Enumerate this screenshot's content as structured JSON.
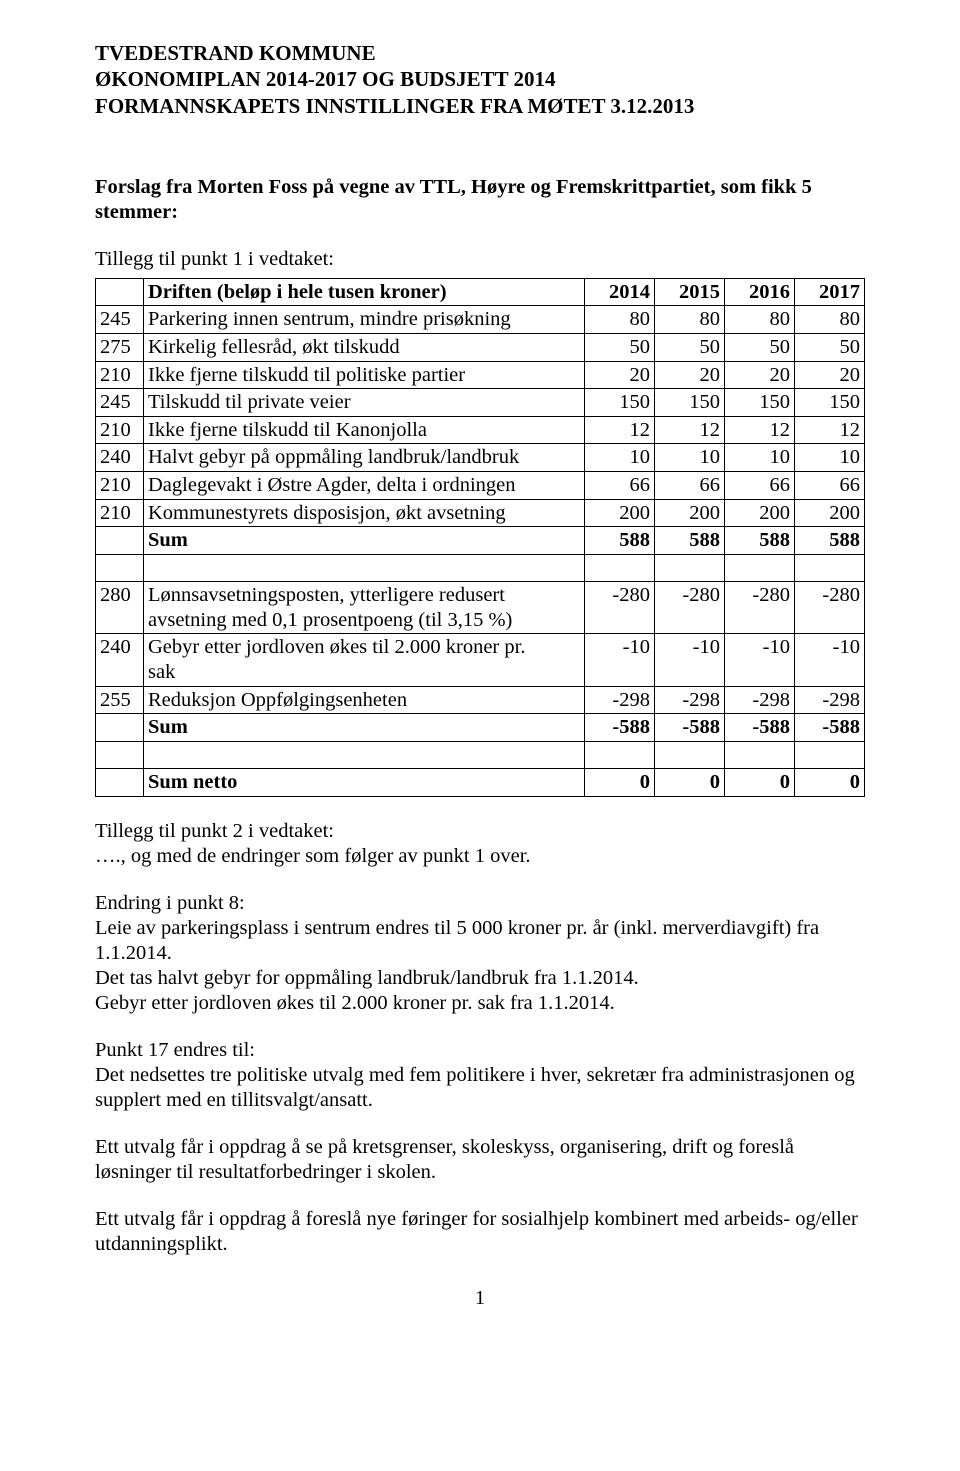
{
  "header": {
    "line1": "TVEDESTRAND KOMMUNE",
    "line2": "ØKONOMIPLAN 2014-2017 OG BUDSJETT 2014",
    "line3": "FORMANNSKAPETS INNSTILLINGER FRA MØTET 3.12.2013"
  },
  "intro": {
    "p1a": "Forslag fra Morten Foss på vegne av TTL, Høyre og Fremskrittpartiet, som fikk 5",
    "p1b": "stemmer:",
    "p2": "Tillegg til punkt 1 i vedtaket:"
  },
  "table": {
    "head_desc": "Driften (beløp i hele tusen kroner)",
    "years": [
      "2014",
      "2015",
      "2016",
      "2017"
    ],
    "section1": [
      {
        "code": "245",
        "desc": "Parkering innen sentrum, mindre prisøkning",
        "v": [
          "80",
          "80",
          "80",
          "80"
        ]
      },
      {
        "code": "275",
        "desc": "Kirkelig fellesråd, økt tilskudd",
        "v": [
          "50",
          "50",
          "50",
          "50"
        ]
      },
      {
        "code": "210",
        "desc": "Ikke fjerne tilskudd til politiske partier",
        "v": [
          "20",
          "20",
          "20",
          "20"
        ]
      },
      {
        "code": "245",
        "desc": "Tilskudd til private veier",
        "v": [
          "150",
          "150",
          "150",
          "150"
        ]
      },
      {
        "code": "210",
        "desc": "Ikke fjerne tilskudd til Kanonjolla",
        "v": [
          "12",
          "12",
          "12",
          "12"
        ]
      },
      {
        "code": "240",
        "desc": "Halvt gebyr på oppmåling landbruk/landbruk",
        "v": [
          "10",
          "10",
          "10",
          "10"
        ]
      },
      {
        "code": "210",
        "desc": "Daglegevakt i Østre Agder, delta i ordningen",
        "v": [
          "66",
          "66",
          "66",
          "66"
        ]
      },
      {
        "code": "210",
        "desc": "Kommunestyrets disposisjon, økt avsetning",
        "v": [
          "200",
          "200",
          "200",
          "200"
        ]
      }
    ],
    "sum1": {
      "label": "Sum",
      "v": [
        "588",
        "588",
        "588",
        "588"
      ]
    },
    "section2": [
      {
        "code": "280",
        "desc1": "Lønnsavsetningsposten, ytterligere redusert",
        "desc2": "avsetning med 0,1 prosentpoeng (til 3,15 %)",
        "v": [
          "-280",
          "-280",
          "-280",
          "-280"
        ]
      },
      {
        "code": "240",
        "desc1": "Gebyr etter jordloven økes til 2.000 kroner pr.",
        "desc2": "sak",
        "v": [
          "-10",
          "-10",
          "-10",
          "-10"
        ]
      },
      {
        "code": "255",
        "desc1": "Reduksjon Oppfølgingsenheten",
        "desc2": "",
        "v": [
          "-298",
          "-298",
          "-298",
          "-298"
        ]
      }
    ],
    "sum2": {
      "label": "Sum",
      "v": [
        "-588",
        "-588",
        "-588",
        "-588"
      ]
    },
    "sumnet": {
      "label": "Sum netto",
      "v": [
        "0",
        "0",
        "0",
        "0"
      ]
    }
  },
  "after": {
    "t2a": "Tillegg til punkt 2 i vedtaket:",
    "t2b": "…., og med de endringer som følger av punkt 1 over.",
    "e8h": "Endring i punkt 8:",
    "e8a": "Leie av parkeringsplass i sentrum endres til 5 000 kroner pr. år (inkl. merverdiavgift) fra",
    "e8b": "1.1.2014.",
    "e8c": "Det tas halvt gebyr for oppmåling landbruk/landbruk fra 1.1.2014.",
    "e8d": "Gebyr etter jordloven økes til 2.000 kroner pr. sak fra 1.1.2014.",
    "p17h": "Punkt 17 endres til:",
    "p17a": "Det nedsettes tre politiske utvalg med fem politikere i hver, sekretær fra administrasjonen og",
    "p17b": "supplert med en tillitsvalgt/ansatt.",
    "u1a": "Ett utvalg får i oppdrag å se på kretsgrenser, skoleskyss, organisering, drift og foreslå",
    "u1b": "løsninger til resultatforbedringer i skolen.",
    "u2a": "Ett utvalg får i oppdrag å foreslå nye føringer for sosialhjelp kombinert med arbeids- og/eller",
    "u2b": "utdanningsplikt."
  },
  "page_number": "1",
  "colors": {
    "text": "#000000",
    "bg": "#ffffff",
    "border": "#000000"
  }
}
